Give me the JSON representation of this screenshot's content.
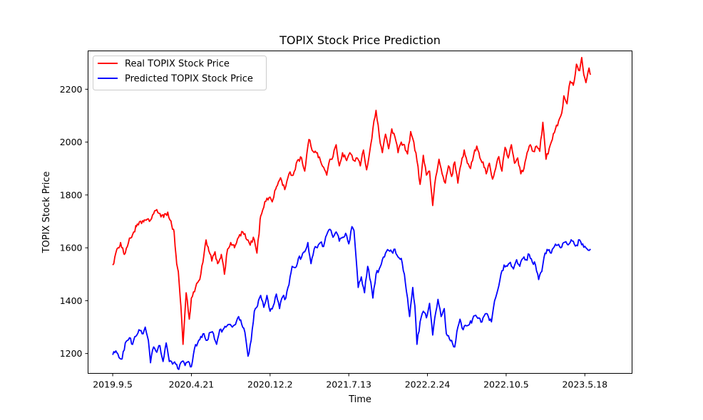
{
  "chart_data": {
    "type": "line",
    "title": "TOPIX Stock Price Prediction",
    "xlabel": "Time",
    "ylabel": "TOPIX Stock Price",
    "x_tick_labels": [
      "2019.9.5",
      "2020.4.21",
      "2020.12.2",
      "2021.7.13",
      "2022.2.24",
      "2022.10.5",
      "2023.5.18"
    ],
    "x_tick_index": [
      0,
      150,
      300,
      450,
      600,
      750,
      900
    ],
    "xlim": [
      -47,
      990
    ],
    "yticks": [
      1200,
      1400,
      1600,
      1800,
      2000,
      2200
    ],
    "ylim": [
      1125,
      2345
    ],
    "grid": false,
    "legend": "top-left",
    "series": [
      {
        "name": "Real TOPIX Stock Price",
        "color": "#ff0000",
        "anchors": [
          [
            0,
            1535
          ],
          [
            10,
            1600
          ],
          [
            15,
            1620
          ],
          [
            22,
            1575
          ],
          [
            30,
            1620
          ],
          [
            45,
            1680
          ],
          [
            60,
            1705
          ],
          [
            70,
            1700
          ],
          [
            80,
            1740
          ],
          [
            90,
            1730
          ],
          [
            97,
            1715
          ],
          [
            105,
            1735
          ],
          [
            112,
            1690
          ],
          [
            117,
            1660
          ],
          [
            122,
            1540
          ],
          [
            125,
            1510
          ],
          [
            130,
            1380
          ],
          [
            134,
            1235
          ],
          [
            140,
            1430
          ],
          [
            146,
            1330
          ],
          [
            150,
            1410
          ],
          [
            158,
            1450
          ],
          [
            166,
            1480
          ],
          [
            172,
            1545
          ],
          [
            178,
            1630
          ],
          [
            183,
            1590
          ],
          [
            189,
            1550
          ],
          [
            195,
            1585
          ],
          [
            200,
            1540
          ],
          [
            207,
            1575
          ],
          [
            213,
            1500
          ],
          [
            219,
            1595
          ],
          [
            225,
            1620
          ],
          [
            232,
            1600
          ],
          [
            240,
            1640
          ],
          [
            248,
            1660
          ],
          [
            256,
            1630
          ],
          [
            262,
            1610
          ],
          [
            268,
            1640
          ],
          [
            275,
            1580
          ],
          [
            282,
            1720
          ],
          [
            290,
            1775
          ],
          [
            298,
            1790
          ],
          [
            305,
            1780
          ],
          [
            312,
            1830
          ],
          [
            320,
            1865
          ],
          [
            328,
            1820
          ],
          [
            336,
            1880
          ],
          [
            344,
            1875
          ],
          [
            352,
            1930
          ],
          [
            360,
            1940
          ],
          [
            366,
            1890
          ],
          [
            374,
            2010
          ],
          [
            382,
            1965
          ],
          [
            390,
            1960
          ],
          [
            396,
            1930
          ],
          [
            402,
            1905
          ],
          [
            408,
            1875
          ],
          [
            414,
            1935
          ],
          [
            420,
            1945
          ],
          [
            426,
            1990
          ],
          [
            432,
            1910
          ],
          [
            438,
            1960
          ],
          [
            446,
            1930
          ],
          [
            452,
            1960
          ],
          [
            460,
            1930
          ],
          [
            466,
            1940
          ],
          [
            472,
            1910
          ],
          [
            478,
            1970
          ],
          [
            484,
            1895
          ],
          [
            490,
            1965
          ],
          [
            496,
            2050
          ],
          [
            502,
            2120
          ],
          [
            508,
            2025
          ],
          [
            514,
            1960
          ],
          [
            520,
            2030
          ],
          [
            526,
            1975
          ],
          [
            532,
            2050
          ],
          [
            538,
            2020
          ],
          [
            544,
            1960
          ],
          [
            550,
            2000
          ],
          [
            556,
            1990
          ],
          [
            562,
            1955
          ],
          [
            568,
            2040
          ],
          [
            574,
            2000
          ],
          [
            580,
            1930
          ],
          [
            586,
            1840
          ],
          [
            592,
            1950
          ],
          [
            598,
            1875
          ],
          [
            604,
            1890
          ],
          [
            610,
            1760
          ],
          [
            616,
            1870
          ],
          [
            622,
            1935
          ],
          [
            628,
            1880
          ],
          [
            634,
            1845
          ],
          [
            640,
            1910
          ],
          [
            646,
            1870
          ],
          [
            652,
            1925
          ],
          [
            658,
            1845
          ],
          [
            664,
            1915
          ],
          [
            670,
            1970
          ],
          [
            676,
            1920
          ],
          [
            682,
            1900
          ],
          [
            688,
            1950
          ],
          [
            694,
            1985
          ],
          [
            700,
            1940
          ],
          [
            706,
            1925
          ],
          [
            712,
            1880
          ],
          [
            718,
            1920
          ],
          [
            724,
            1860
          ],
          [
            730,
            1900
          ],
          [
            736,
            1945
          ],
          [
            742,
            1890
          ],
          [
            748,
            1980
          ],
          [
            754,
            1940
          ],
          [
            760,
            1990
          ],
          [
            766,
            1920
          ],
          [
            772,
            1940
          ],
          [
            778,
            1880
          ],
          [
            784,
            1900
          ],
          [
            790,
            1960
          ],
          [
            796,
            1990
          ],
          [
            802,
            1965
          ],
          [
            808,
            1985
          ],
          [
            814,
            1965
          ],
          [
            820,
            2075
          ],
          [
            826,
            1935
          ],
          [
            832,
            1975
          ],
          [
            838,
            2010
          ],
          [
            844,
            2050
          ],
          [
            850,
            2080
          ],
          [
            856,
            2110
          ],
          [
            860,
            2175
          ],
          [
            866,
            2145
          ],
          [
            872,
            2230
          ],
          [
            878,
            2215
          ],
          [
            884,
            2295
          ],
          [
            890,
            2270
          ],
          [
            894,
            2320
          ],
          [
            898,
            2255
          ],
          [
            902,
            2225
          ],
          [
            908,
            2280
          ],
          [
            911,
            2255
          ]
        ]
      },
      {
        "name": "Predicted TOPIX Stock Price",
        "color": "#0000ff",
        "anchors": [
          [
            0,
            1195
          ],
          [
            6,
            1210
          ],
          [
            12,
            1185
          ],
          [
            18,
            1180
          ],
          [
            24,
            1240
          ],
          [
            32,
            1260
          ],
          [
            38,
            1235
          ],
          [
            44,
            1265
          ],
          [
            50,
            1290
          ],
          [
            56,
            1275
          ],
          [
            62,
            1300
          ],
          [
            68,
            1250
          ],
          [
            72,
            1165
          ],
          [
            78,
            1225
          ],
          [
            84,
            1205
          ],
          [
            90,
            1230
          ],
          [
            96,
            1170
          ],
          [
            102,
            1240
          ],
          [
            108,
            1170
          ],
          [
            114,
            1160
          ],
          [
            120,
            1160
          ],
          [
            126,
            1140
          ],
          [
            132,
            1170
          ],
          [
            138,
            1155
          ],
          [
            144,
            1170
          ],
          [
            150,
            1150
          ],
          [
            156,
            1220
          ],
          [
            162,
            1240
          ],
          [
            168,
            1265
          ],
          [
            174,
            1275
          ],
          [
            180,
            1250
          ],
          [
            186,
            1280
          ],
          [
            192,
            1275
          ],
          [
            198,
            1235
          ],
          [
            204,
            1290
          ],
          [
            210,
            1290
          ],
          [
            216,
            1300
          ],
          [
            222,
            1310
          ],
          [
            228,
            1300
          ],
          [
            234,
            1310
          ],
          [
            240,
            1340
          ],
          [
            246,
            1310
          ],
          [
            252,
            1280
          ],
          [
            258,
            1190
          ],
          [
            264,
            1250
          ],
          [
            270,
            1360
          ],
          [
            276,
            1380
          ],
          [
            282,
            1420
          ],
          [
            288,
            1375
          ],
          [
            294,
            1420
          ],
          [
            300,
            1360
          ],
          [
            306,
            1380
          ],
          [
            312,
            1425
          ],
          [
            318,
            1370
          ],
          [
            324,
            1415
          ],
          [
            330,
            1410
          ],
          [
            336,
            1460
          ],
          [
            342,
            1530
          ],
          [
            348,
            1525
          ],
          [
            354,
            1560
          ],
          [
            360,
            1565
          ],
          [
            366,
            1585
          ],
          [
            372,
            1620
          ],
          [
            378,
            1540
          ],
          [
            384,
            1595
          ],
          [
            390,
            1600
          ],
          [
            396,
            1620
          ],
          [
            402,
            1605
          ],
          [
            408,
            1650
          ],
          [
            414,
            1670
          ],
          [
            420,
            1640
          ],
          [
            426,
            1660
          ],
          [
            432,
            1625
          ],
          [
            438,
            1640
          ],
          [
            444,
            1655
          ],
          [
            450,
            1615
          ],
          [
            456,
            1680
          ],
          [
            460,
            1665
          ],
          [
            464,
            1560
          ],
          [
            468,
            1450
          ],
          [
            474,
            1490
          ],
          [
            480,
            1430
          ],
          [
            486,
            1530
          ],
          [
            492,
            1470
          ],
          [
            496,
            1410
          ],
          [
            502,
            1500
          ],
          [
            508,
            1520
          ],
          [
            514,
            1555
          ],
          [
            520,
            1580
          ],
          [
            526,
            1590
          ],
          [
            532,
            1585
          ],
          [
            538,
            1595
          ],
          [
            544,
            1565
          ],
          [
            550,
            1560
          ],
          [
            556,
            1500
          ],
          [
            562,
            1410
          ],
          [
            566,
            1340
          ],
          [
            572,
            1450
          ],
          [
            576,
            1380
          ],
          [
            580,
            1235
          ],
          [
            586,
            1320
          ],
          [
            592,
            1360
          ],
          [
            598,
            1335
          ],
          [
            604,
            1390
          ],
          [
            610,
            1270
          ],
          [
            614,
            1335
          ],
          [
            620,
            1405
          ],
          [
            626,
            1340
          ],
          [
            632,
            1370
          ],
          [
            636,
            1275
          ],
          [
            642,
            1255
          ],
          [
            646,
            1250
          ],
          [
            652,
            1225
          ],
          [
            658,
            1300
          ],
          [
            662,
            1330
          ],
          [
            668,
            1290
          ],
          [
            674,
            1305
          ],
          [
            680,
            1310
          ],
          [
            686,
            1330
          ],
          [
            692,
            1345
          ],
          [
            698,
            1335
          ],
          [
            704,
            1320
          ],
          [
            710,
            1350
          ],
          [
            716,
            1340
          ],
          [
            722,
            1320
          ],
          [
            728,
            1400
          ],
          [
            734,
            1440
          ],
          [
            740,
            1500
          ],
          [
            746,
            1535
          ],
          [
            752,
            1530
          ],
          [
            758,
            1545
          ],
          [
            764,
            1520
          ],
          [
            770,
            1555
          ],
          [
            776,
            1530
          ],
          [
            782,
            1560
          ],
          [
            788,
            1555
          ],
          [
            794,
            1575
          ],
          [
            800,
            1545
          ],
          [
            806,
            1535
          ],
          [
            812,
            1480
          ],
          [
            818,
            1510
          ],
          [
            824,
            1580
          ],
          [
            830,
            1590
          ],
          [
            836,
            1580
          ],
          [
            842,
            1605
          ],
          [
            848,
            1610
          ],
          [
            854,
            1600
          ],
          [
            860,
            1620
          ],
          [
            866,
            1615
          ],
          [
            872,
            1620
          ],
          [
            878,
            1625
          ],
          [
            884,
            1610
          ],
          [
            890,
            1630
          ],
          [
            896,
            1615
          ],
          [
            902,
            1600
          ],
          [
            908,
            1590
          ],
          [
            911,
            1595
          ]
        ]
      }
    ]
  }
}
